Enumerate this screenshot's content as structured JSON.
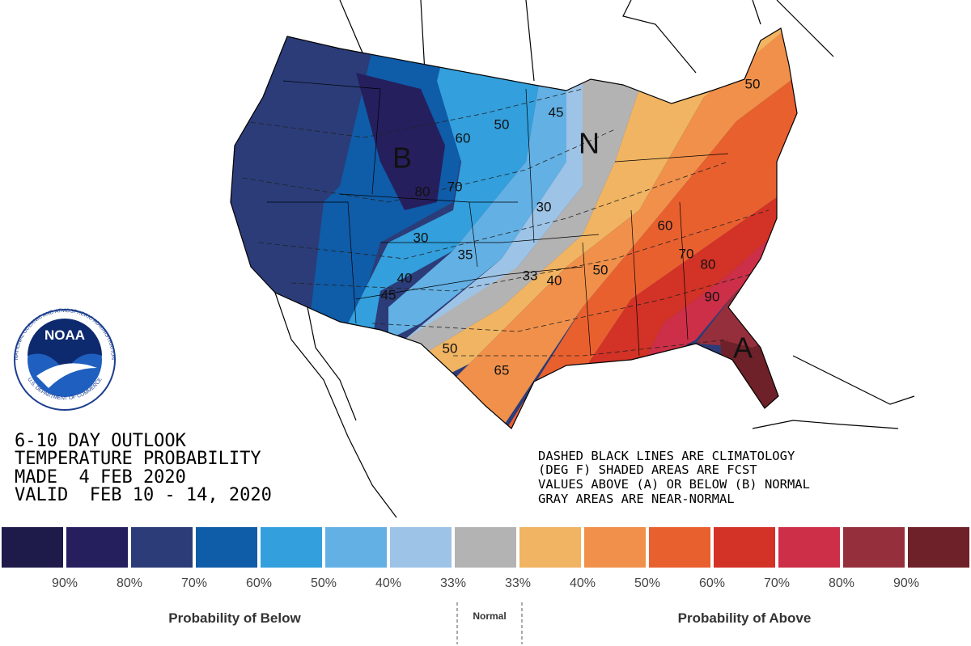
{
  "logo": {
    "text": "NOAA",
    "ring_top": "NATIONAL OCEANIC AND ATMOSPHERIC ADMINISTRATION",
    "ring_bottom": "U.S. DEPARTMENT OF COMMERCE"
  },
  "title_lines": [
    "6-10 DAY OUTLOOK",
    "TEMPERATURE PROBABILITY",
    "MADE  4 FEB 2020",
    "VALID  FEB 10 - 14, 2020"
  ],
  "note_lines": [
    "DASHED BLACK LINES ARE CLIMATOLOGY",
    "(DEG F) SHADED AREAS ARE FCST",
    "VALUES ABOVE (A) OR BELOW (B) NORMAL",
    "GRAY AREAS ARE NEAR-NORMAL"
  ],
  "map_labels": [
    "50",
    "60",
    "45",
    "B",
    "80",
    "70",
    "30",
    "35",
    "40",
    "45",
    "30",
    "33",
    "40",
    "50",
    "60",
    "70",
    "80",
    "90",
    "A",
    "N",
    "50",
    "65",
    "50"
  ],
  "legend": {
    "colors": [
      "#1e1a4a",
      "#251f5e",
      "#2b3c78",
      "#0f5ca8",
      "#339fdc",
      "#63b0e4",
      "#9dc3e6",
      "#b3b3b3",
      "#f0b462",
      "#f0904a",
      "#e9602f",
      "#d33226",
      "#cc2f47",
      "#962f3c",
      "#6e2128"
    ],
    "labels": [
      "90%",
      "80%",
      "70%",
      "60%",
      "50%",
      "40%",
      "33%",
      "33%",
      "40%",
      "50%",
      "60%",
      "70%",
      "80%",
      "90%"
    ],
    "below": "Probability of Below",
    "normal": "Normal",
    "above": "Probability of Above"
  }
}
